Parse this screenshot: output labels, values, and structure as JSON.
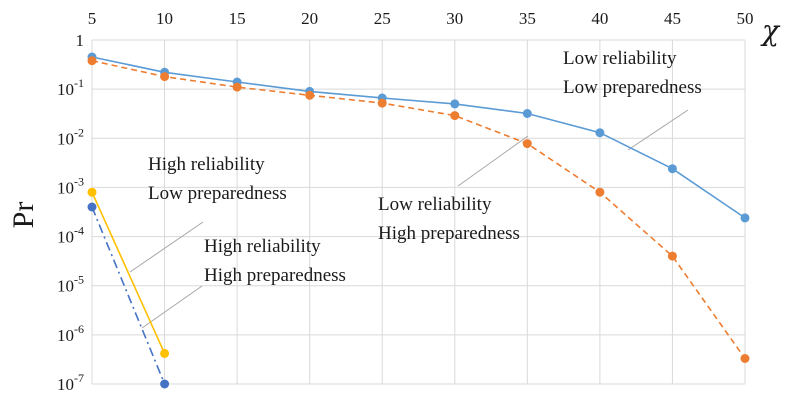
{
  "chart_data": {
    "type": "line",
    "title": "",
    "xlabel": "χ",
    "ylabel": "Pr",
    "x_ticks": [
      "5",
      "10",
      "15",
      "20",
      "25",
      "30",
      "35",
      "40",
      "45",
      "50"
    ],
    "y_scale": "log",
    "y_ticks": [
      {
        "value": 1,
        "base": "1",
        "exp": ""
      },
      {
        "value": 0.1,
        "base": "10",
        "exp": "-1"
      },
      {
        "value": 0.01,
        "base": "10",
        "exp": "-2"
      },
      {
        "value": 0.001,
        "base": "10",
        "exp": "-3"
      },
      {
        "value": 0.0001,
        "base": "10",
        "exp": "-4"
      },
      {
        "value": 1e-05,
        "base": "10",
        "exp": "-5"
      },
      {
        "value": 1e-06,
        "base": "10",
        "exp": "-6"
      },
      {
        "value": 1e-07,
        "base": "10",
        "exp": "-7"
      }
    ],
    "xlim": [
      5,
      50
    ],
    "ylim": [
      1e-07,
      1
    ],
    "grid": true,
    "series": [
      {
        "color": "#5b9bd5",
        "dash": "solid",
        "x": [
          5,
          10,
          15,
          20,
          25,
          30,
          35,
          40,
          45,
          50
        ],
        "y": [
          0.45,
          0.22,
          0.14,
          0.09,
          0.066,
          0.05,
          0.032,
          0.013,
          0.0024,
          0.00024
        ]
      },
      {
        "color": "#ed7d31",
        "dash": "dashed",
        "x": [
          5,
          10,
          15,
          20,
          25,
          30,
          35,
          40,
          45,
          50
        ],
        "y": [
          0.38,
          0.18,
          0.11,
          0.075,
          0.052,
          0.029,
          0.0078,
          0.0008,
          4e-05,
          3.3e-07
        ]
      },
      {
        "color": "#ffc000",
        "dash": "solid",
        "x": [
          5,
          10
        ],
        "y": [
          0.0008,
          4.2e-07
        ]
      },
      {
        "color": "#4472c4",
        "dash": "dashdot",
        "x": [
          5,
          10
        ],
        "y": [
          0.0004,
          1e-07
        ]
      }
    ],
    "annotations": [
      {
        "lines": [
          "Low reliability",
          "Low preparedness"
        ]
      },
      {
        "lines": [
          "Low reliability",
          "High preparedness"
        ]
      },
      {
        "lines": [
          "High reliability",
          "Low preparedness"
        ]
      },
      {
        "lines": [
          "High reliability",
          "High preparedness"
        ]
      }
    ]
  }
}
